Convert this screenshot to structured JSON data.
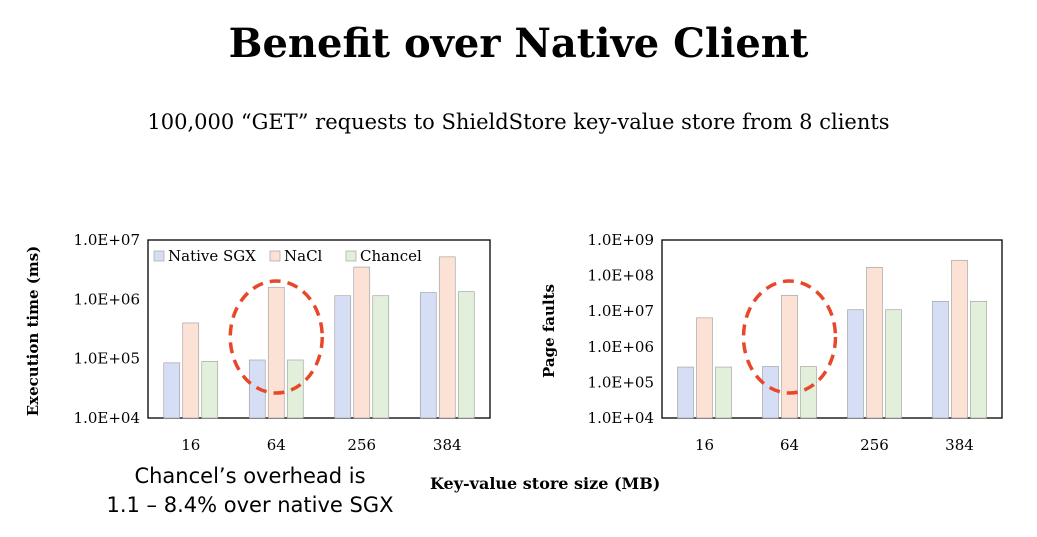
{
  "slide": {
    "title": "Benefit over Native Client",
    "subtitle": "100,000 “GET” requests to ShieldStore key-value store from 8 clients",
    "note_line1": "Chancel’s overhead is",
    "note_line2": "1.1 – 8.4% over native SGX",
    "shared_xlabel": "Key-value store size (MB)"
  },
  "colors": {
    "Native SGX": "#d6def5",
    "NaCl": "#fbe2d5",
    "Chancel": "#e2efda",
    "highlight": "#e8472a"
  },
  "chart_data": [
    {
      "type": "bar",
      "categories": [
        "16",
        "64",
        "256",
        "384"
      ],
      "series": [
        {
          "name": "Native SGX",
          "values": [
            85000,
            95000,
            1150000,
            1300000
          ]
        },
        {
          "name": "NaCl",
          "values": [
            400000,
            1600000,
            3500000,
            5200000
          ]
        },
        {
          "name": "Chancel",
          "values": [
            90000,
            95000,
            1150000,
            1350000
          ]
        }
      ],
      "ylabel": "Execution time (ms)",
      "yscale": "log",
      "ylim": [
        10000,
        10000000
      ],
      "yticks": [
        {
          "label": "1.0E+04",
          "value": 10000
        },
        {
          "label": "1.0E+05",
          "value": 100000
        },
        {
          "label": "1.0E+06",
          "value": 1000000
        },
        {
          "label": "1.0E+07",
          "value": 10000000
        }
      ],
      "legend": "top-inside",
      "highlight_category": "64",
      "grid": false
    },
    {
      "type": "bar",
      "categories": [
        "16",
        "64",
        "256",
        "384"
      ],
      "series": [
        {
          "name": "Native SGX",
          "values": [
            270000,
            280000,
            11000000,
            19000000
          ]
        },
        {
          "name": "NaCl",
          "values": [
            6500000,
            28000000,
            170000000,
            270000000
          ]
        },
        {
          "name": "Chancel",
          "values": [
            270000,
            280000,
            11000000,
            19000000
          ]
        }
      ],
      "ylabel": "Page faults",
      "yscale": "log",
      "ylim": [
        10000,
        1000000000
      ],
      "yticks": [
        {
          "label": "1.0E+04",
          "value": 10000
        },
        {
          "label": "1.0E+05",
          "value": 100000
        },
        {
          "label": "1.0E+06",
          "value": 1000000
        },
        {
          "label": "1.0E+07",
          "value": 10000000
        },
        {
          "label": "1.0E+08",
          "value": 100000000
        },
        {
          "label": "1.0E+09",
          "value": 1000000000
        }
      ],
      "highlight_category": "64",
      "grid": false
    }
  ]
}
